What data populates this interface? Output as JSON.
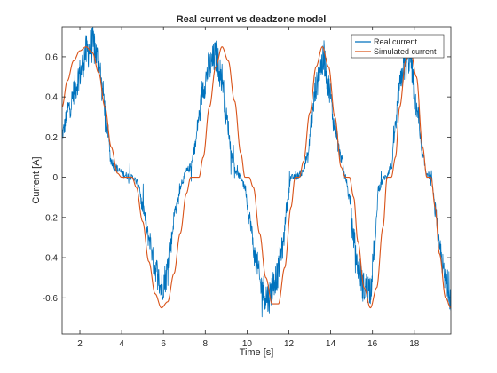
{
  "chart_data": {
    "type": "line",
    "title": "Real current vs deadzone model",
    "xlabel": "Time [s]",
    "ylabel": "Current [A]",
    "xlim": [
      1.15,
      19.75
    ],
    "ylim": [
      -0.78,
      0.75
    ],
    "xticks": [
      2,
      4,
      6,
      8,
      10,
      12,
      14,
      16,
      18
    ],
    "xtick_labels": [
      "2",
      "4",
      "6",
      "8",
      "10",
      "12",
      "14",
      "16",
      "18"
    ],
    "yticks": [
      0.6,
      0.4,
      0.2,
      0,
      -0.2,
      -0.4,
      -0.6
    ],
    "ytick_labels": [
      "0.6",
      "0.4",
      "0.2",
      "0",
      "-0.2",
      "-0.4",
      "-0.6"
    ],
    "grid": false,
    "legend_position": "top-right",
    "series": [
      {
        "name": "Real current",
        "color": "#0072BD",
        "style": "noisy",
        "x": [
          1.15,
          1.5,
          1.8,
          2.0,
          2.3,
          2.6,
          2.9,
          3.1,
          3.3,
          3.5,
          3.7,
          3.9,
          4.2,
          4.5,
          4.8,
          5.0,
          5.3,
          5.6,
          5.9,
          6.1,
          6.3,
          6.6,
          6.9,
          7.1,
          7.3,
          7.5,
          7.7,
          7.9,
          8.2,
          8.5,
          8.8,
          9.0,
          9.3,
          9.5,
          9.7,
          9.9,
          10.1,
          10.4,
          10.7,
          11.0,
          11.4,
          11.7,
          11.9,
          12.1,
          12.3,
          12.6,
          12.9,
          13.1,
          13.3,
          13.5,
          13.7,
          13.9,
          14.2,
          14.5,
          14.7,
          14.9,
          15.1,
          15.3,
          15.6,
          15.9,
          16.1,
          16.3,
          16.6,
          16.9,
          17.1,
          17.3,
          17.5,
          17.8,
          18.1,
          18.4,
          18.6,
          18.8,
          19.0,
          19.2,
          19.5,
          19.75
        ],
        "y": [
          0.22,
          0.35,
          0.45,
          0.52,
          0.62,
          0.66,
          0.58,
          0.42,
          0.25,
          0.08,
          0.05,
          0.03,
          0.01,
          0.0,
          -0.03,
          -0.15,
          -0.3,
          -0.45,
          -0.55,
          -0.5,
          -0.35,
          -0.15,
          -0.02,
          0.03,
          0.05,
          0.15,
          0.3,
          0.45,
          0.55,
          0.6,
          0.5,
          0.3,
          0.1,
          0.02,
          0.0,
          -0.05,
          -0.2,
          -0.4,
          -0.55,
          -0.6,
          -0.5,
          -0.35,
          -0.15,
          0.0,
          0.0,
          0.02,
          0.1,
          0.3,
          0.45,
          0.55,
          0.58,
          0.45,
          0.25,
          0.1,
          0.0,
          -0.1,
          -0.3,
          -0.45,
          -0.55,
          -0.55,
          -0.35,
          -0.05,
          0.0,
          0.05,
          0.25,
          0.45,
          0.55,
          0.6,
          0.35,
          0.1,
          0.02,
          0.0,
          -0.15,
          -0.35,
          -0.52,
          -0.58
        ]
      },
      {
        "name": "Simulated current",
        "color": "#D95319",
        "style": "smooth",
        "x": [
          1.15,
          1.4,
          1.7,
          2.0,
          2.3,
          2.6,
          2.9,
          3.2,
          3.5,
          3.8,
          4.0,
          4.3,
          4.5,
          4.7,
          5.0,
          5.3,
          5.6,
          5.9,
          6.2,
          6.5,
          6.8,
          7.1,
          7.3,
          7.5,
          7.7,
          7.9,
          8.2,
          8.5,
          8.8,
          9.1,
          9.4,
          9.7,
          9.9,
          10.1,
          10.3,
          10.6,
          10.9,
          11.2,
          11.5,
          11.8,
          12.1,
          12.3,
          12.5,
          12.7,
          13.0,
          13.3,
          13.6,
          13.9,
          14.2,
          14.5,
          14.7,
          14.9,
          15.1,
          15.3,
          15.6,
          15.9,
          16.2,
          16.5,
          16.7,
          16.9,
          17.1,
          17.3,
          17.6,
          17.8,
          18.1,
          18.4,
          18.6,
          18.8,
          19.0,
          19.2,
          19.5,
          19.75
        ],
        "y": [
          0.35,
          0.48,
          0.58,
          0.63,
          0.65,
          0.62,
          0.52,
          0.35,
          0.15,
          0.02,
          0.0,
          0.0,
          0.0,
          -0.05,
          -0.22,
          -0.42,
          -0.58,
          -0.65,
          -0.62,
          -0.48,
          -0.28,
          -0.08,
          0.0,
          0.0,
          0.0,
          0.1,
          0.35,
          0.55,
          0.65,
          0.58,
          0.38,
          0.12,
          0.0,
          0.0,
          -0.05,
          -0.28,
          -0.5,
          -0.63,
          -0.63,
          -0.45,
          -0.15,
          0.0,
          0.0,
          0.08,
          0.32,
          0.55,
          0.65,
          0.55,
          0.3,
          0.05,
          0.0,
          0.0,
          -0.1,
          -0.32,
          -0.55,
          -0.65,
          -0.55,
          -0.25,
          0.0,
          0.0,
          0.1,
          0.35,
          0.58,
          0.65,
          0.5,
          0.15,
          0.0,
          0.0,
          -0.15,
          -0.38,
          -0.6,
          -0.65
        ]
      }
    ]
  }
}
